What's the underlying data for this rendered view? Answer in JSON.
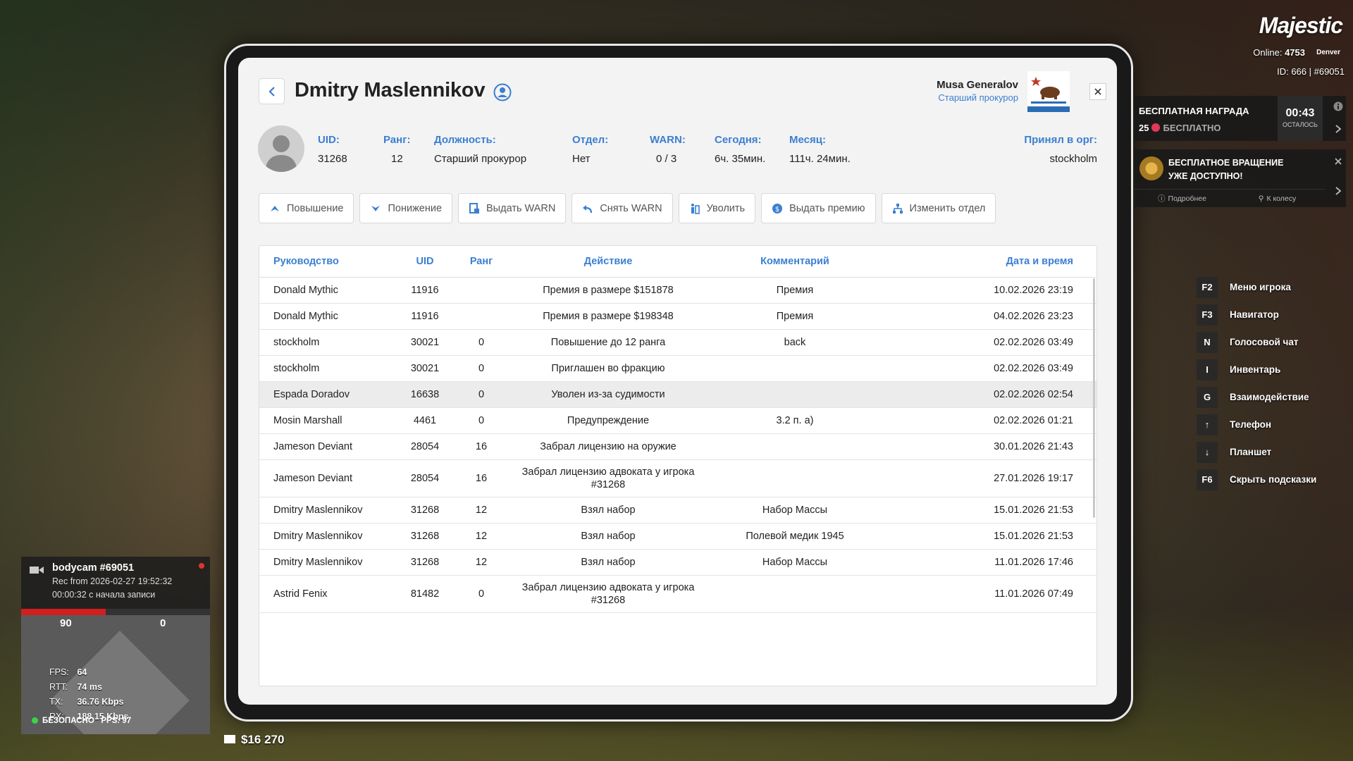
{
  "header": {
    "player_name": "Dmitry Maslennikov",
    "officer_name": "Musa Generalov",
    "officer_rank": "Старший прокурор"
  },
  "info": [
    {
      "label": "UID:",
      "value": "31268"
    },
    {
      "label": "Ранг:",
      "value": "12"
    },
    {
      "label": "Должность:",
      "value": "Старший прокурор"
    },
    {
      "label": "Отдел:",
      "value": "Нет"
    },
    {
      "label": "WARN:",
      "value": "0 / 3"
    },
    {
      "label": "Сегодня:",
      "value": "6ч. 35мин."
    },
    {
      "label": "Месяц:",
      "value": "111ч. 24мин."
    },
    {
      "label": "Принял в орг:",
      "value": "stockholm"
    }
  ],
  "actions": [
    {
      "label": "Повышение",
      "icon": "promote-icon"
    },
    {
      "label": "Понижение",
      "icon": "demote-icon"
    },
    {
      "label": "Выдать WARN",
      "icon": "warn-icon"
    },
    {
      "label": "Снять WARN",
      "icon": "undo-icon"
    },
    {
      "label": "Уволить",
      "icon": "fire-icon"
    },
    {
      "label": "Выдать премию",
      "icon": "bonus-icon"
    },
    {
      "label": "Изменить отдел",
      "icon": "department-icon"
    }
  ],
  "table": {
    "headers": [
      "Руководство",
      "UID",
      "Ранг",
      "Действие",
      "Комментарий",
      "Дата и время"
    ],
    "rows": [
      [
        "Donald Mythic",
        "11916",
        "",
        "Премия в размере $151878",
        "Премия",
        "10.02.2026 23:19"
      ],
      [
        "Donald Mythic",
        "11916",
        "",
        "Премия в размере $198348",
        "Премия",
        "04.02.2026 23:23"
      ],
      [
        "stockholm",
        "30021",
        "0",
        "Повышение до 12 ранга",
        "back",
        "02.02.2026 03:49"
      ],
      [
        "stockholm",
        "30021",
        "0",
        "Приглашен во фракцию",
        "",
        "02.02.2026 03:49"
      ],
      [
        "Espada Doradov",
        "16638",
        "0",
        "Уволен из-за судимости",
        "",
        "02.02.2026 02:54"
      ],
      [
        "Mosin Marshall",
        "4461",
        "0",
        "Предупреждение",
        "3.2 п. а)",
        "02.02.2026 01:21"
      ],
      [
        "Jameson Deviant",
        "28054",
        "16",
        "Забрал лицензию на оружие",
        "",
        "30.01.2026 21:43"
      ],
      [
        "Jameson Deviant",
        "28054",
        "16",
        "Забрал лицензию адвоката у игрока #31268",
        "",
        "27.01.2026 19:17"
      ],
      [
        "Dmitry Maslennikov",
        "31268",
        "12",
        "Взял набор",
        "Набор Массы",
        "15.01.2026 21:53"
      ],
      [
        "Dmitry Maslennikov",
        "31268",
        "12",
        "Взял набор",
        "Полевой медик 1945",
        "15.01.2026 21:53"
      ],
      [
        "Dmitry Maslennikov",
        "31268",
        "12",
        "Взял набор",
        "Набор Массы",
        "11.01.2026 17:46"
      ],
      [
        "Astrid Fenix",
        "81482",
        "0",
        "Забрал лицензию адвоката у игрока #31268",
        "",
        "11.01.2026 07:49"
      ]
    ],
    "highlighted_row": 4
  },
  "hud": {
    "brand": "Majestic",
    "online_label": "Online:",
    "online_count": "4753",
    "city": "Denver",
    "id_text": "ID: 666 | #69051",
    "reward_title": "БЕСПЛАТНАЯ НАГРАДА",
    "reward_amount": "25",
    "reward_free": "БЕСПЛАТНО",
    "reward_timer": "00:43",
    "reward_timer_label": "ОСТАЛОСЬ",
    "spin_title_1": "БЕСПЛАТНОЕ ВРАЩЕНИЕ",
    "spin_title_2": "УЖЕ ДОСТУПНО!",
    "spin_more": "Подробнее",
    "spin_wheel": "К колесу",
    "hints": [
      {
        "key": "F2",
        "label": "Меню игрока"
      },
      {
        "key": "F3",
        "label": "Навигатор"
      },
      {
        "key": "N",
        "label": "Голосовой чат"
      },
      {
        "key": "I",
        "label": "Инвентарь"
      },
      {
        "key": "G",
        "label": "Взаимодействие"
      },
      {
        "key": "↑",
        "label": "Телефон"
      },
      {
        "key": "↓",
        "label": "Планшет"
      },
      {
        "key": "F6",
        "label": "Скрыть подсказки"
      }
    ],
    "bodycam_title": "bodycam #69051",
    "bodycam_rec": "Rec from 2026-02-27 19:52:32",
    "bodycam_elapsed": "00:00:32 с начала записи",
    "compass_left": "90",
    "compass_right": "0",
    "fps": "64",
    "rtt": "74 ms",
    "tx": "36.76 Kbps",
    "rx": "188.15 Kbps",
    "pps": "97",
    "safe_zone": "БЕЗОПАСНО",
    "money": "$16 270"
  }
}
